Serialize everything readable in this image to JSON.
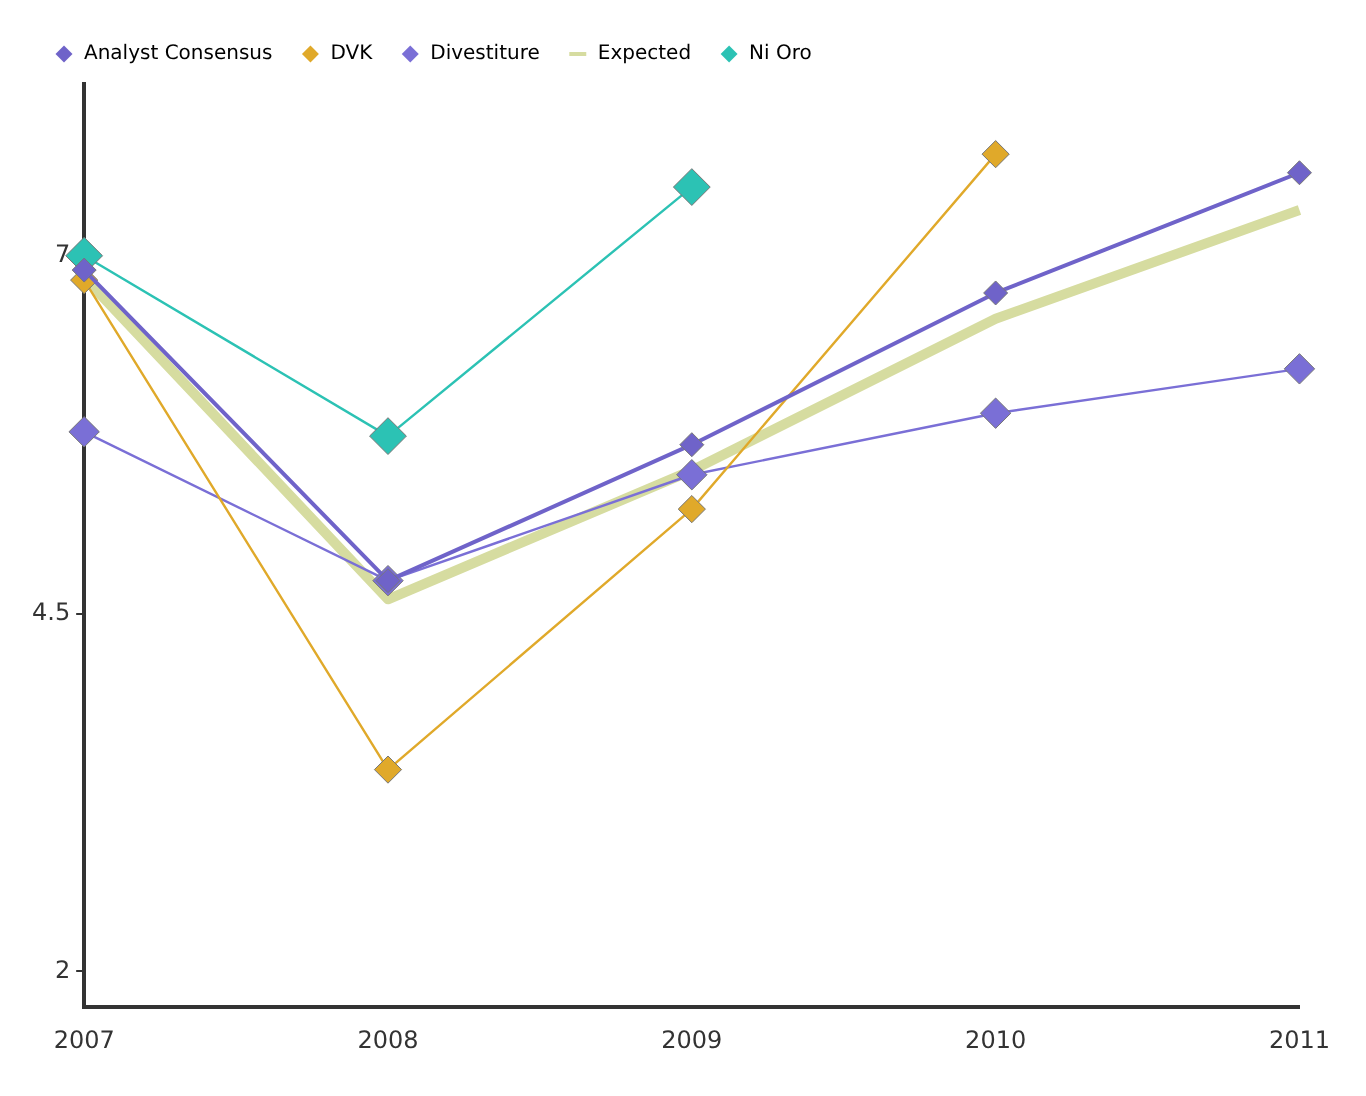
{
  "chart_data": {
    "type": "line",
    "categories": [
      "2007",
      "2008",
      "2009",
      "2010",
      "2011"
    ],
    "series": [
      {
        "name": "Analyst Consensus",
        "color": "#6f63c9",
        "values": [
          6.9,
          4.73,
          5.68,
          6.74,
          7.58
        ],
        "marker": "diamond"
      },
      {
        "name": "DVK",
        "color": "#e0a92a",
        "values": [
          6.83,
          3.41,
          5.23,
          7.71,
          null
        ],
        "marker": "diamond"
      },
      {
        "name": "Divestiture",
        "color": "#7a6fd6",
        "values": [
          5.77,
          4.73,
          5.47,
          5.9,
          6.21
        ],
        "marker": "diamond"
      },
      {
        "name": "Expected",
        "color": "#d6dca0",
        "values": [
          6.85,
          4.6,
          5.5,
          6.56,
          7.32
        ],
        "marker": "none"
      },
      {
        "name": "Ni Oro",
        "color": "#2cc2b4",
        "values": [
          7.0,
          5.74,
          7.48,
          null,
          null
        ],
        "marker": "diamond"
      }
    ],
    "ylim": [
      1.75,
      8.2
    ],
    "yticks": [
      2,
      4.5,
      7
    ],
    "grid": false,
    "legend": "top"
  }
}
